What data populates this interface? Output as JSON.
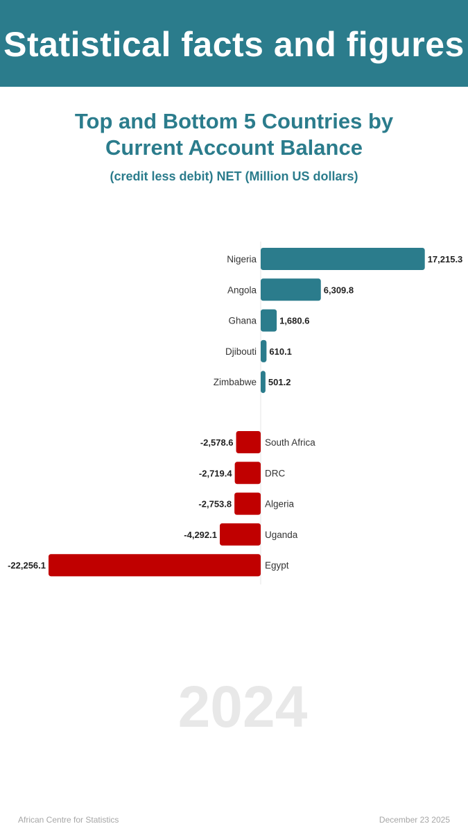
{
  "header": {
    "title": "Statistical facts and figures"
  },
  "chart_data": {
    "type": "bar",
    "orientation": "horizontal",
    "title_line1": "Top and Bottom 5 Countries by",
    "title_line2": "Current Account Balance",
    "subtitle": "(credit less debit) NET (Million US dollars)",
    "top": {
      "categories": [
        "Nigeria",
        "Angola",
        "Ghana",
        "Djibouti",
        "Zimbabwe"
      ],
      "values": [
        17215.3,
        6309.8,
        1680.6,
        610.1,
        501.2
      ],
      "labels": [
        "17,215.3",
        "6,309.8",
        "1,680.6",
        "610.1",
        "501.2"
      ],
      "color": "#2b7c8c"
    },
    "bottom": {
      "categories": [
        "South Africa",
        "DRC",
        "Algeria",
        "Uganda",
        "Egypt"
      ],
      "values": [
        -2578.6,
        -2719.4,
        -2753.8,
        -4292.1,
        -22256.1
      ],
      "labels": [
        "-2,578.6",
        "-2,719.4",
        "-2,753.8",
        "-4,292.1",
        "-22,256.1"
      ],
      "color": "#c00000"
    },
    "year": "2024"
  },
  "footer": {
    "source": "African Centre for Statistics",
    "date": "December 23 2025"
  }
}
